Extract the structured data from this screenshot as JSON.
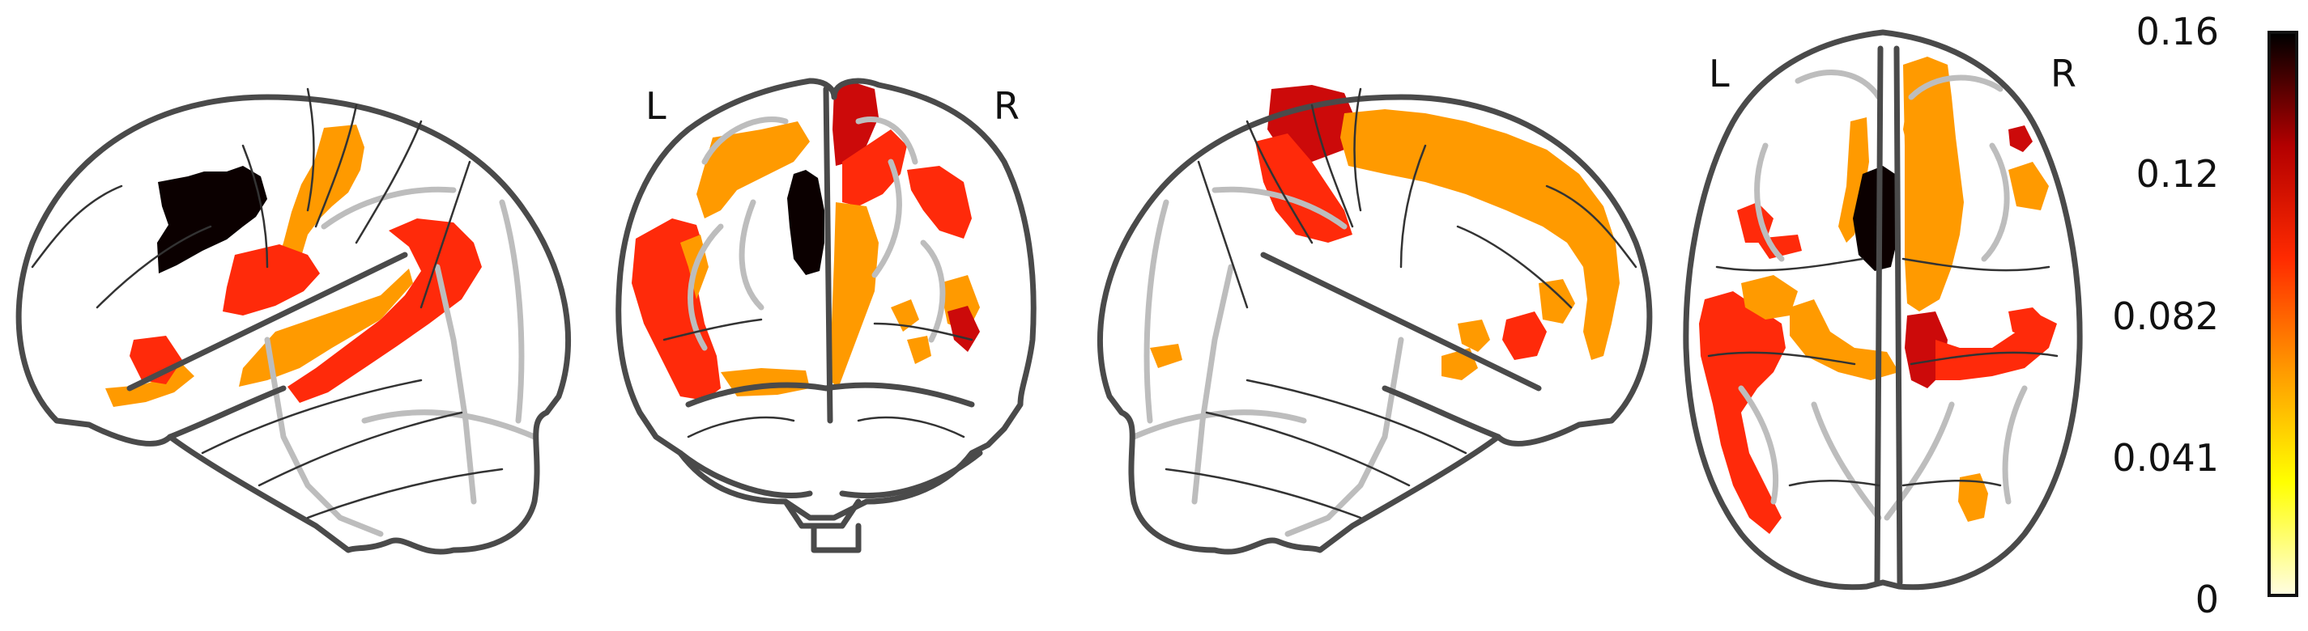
{
  "figure": {
    "views": [
      {
        "name": "sagittal-left",
        "hemisphere_labels": []
      },
      {
        "name": "coronal",
        "hemisphere_labels": [
          "L",
          "R"
        ]
      },
      {
        "name": "sagittal-right",
        "hemisphere_labels": []
      },
      {
        "name": "axial",
        "hemisphere_labels": [
          "L",
          "R"
        ]
      }
    ]
  },
  "colorbar": {
    "colormap": "cold_hot",
    "colors": [
      "#fffde0",
      "#ffff00",
      "#ff9900",
      "#ff2a00",
      "#b30000",
      "#000000"
    ],
    "ticks": [
      "0.16",
      "0.12",
      "0.082",
      "0.041",
      "0"
    ]
  },
  "blob_colors": {
    "orange": "#ff9a00",
    "red": "#ff2a0a",
    "darkred": "#cc0a0a",
    "black": "#0b0000"
  }
}
